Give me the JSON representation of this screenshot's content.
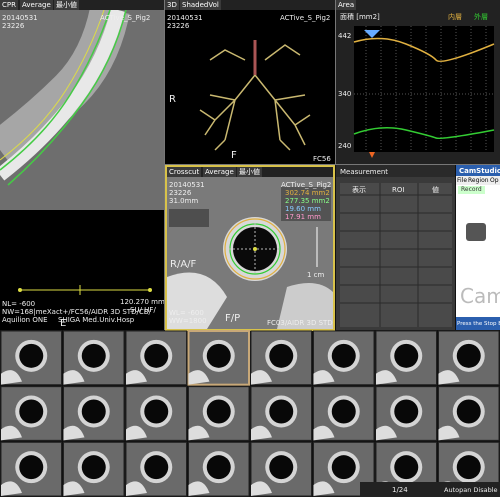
{
  "cpr": {
    "tabs": [
      "CPR",
      "Average",
      "最小値"
    ],
    "date": "20140531",
    "time": "23226",
    "patient": "ACTive_S_Pig2",
    "orient": "E",
    "scale": "120.270 mm",
    "info": [
      "NL= -600",
      "SU/ HF/",
      "NW=168|meXact+/FC56/AIDR 3D STD/CB/",
      "Aquilion ONE",
      "SHIGA Med.Univ.Hosp"
    ]
  },
  "volume": {
    "tabs": [
      "3D",
      "ShadedVol"
    ],
    "date": "20140531",
    "time": "23226",
    "patient": "ACTive_S_Pig2",
    "left": "R",
    "bottom": "F",
    "kernel": "FC56"
  },
  "area": {
    "tab": "Area",
    "unit": "面積 [mm2]",
    "legend": [
      "内層",
      "外層"
    ],
    "yticks": [
      "442",
      "340",
      "240"
    ]
  },
  "crosscut": {
    "tabs": [
      "Crosscut",
      "Average",
      "最小値"
    ],
    "date": "20140531",
    "time": "23226",
    "patient": "ACTive_S_Pig2",
    "thickness": "31.0mm",
    "measures": [
      "302.74 mm2",
      "277.35 mm2",
      "19.60 mm",
      "17.91 mm"
    ],
    "left": "R/A/F",
    "bottom": "F/P",
    "scalebar": "1 cm",
    "wl": "WL= -600",
    "ww": "WW=1800",
    "recon": "FC03/AIDR 3D STD"
  },
  "measurement": {
    "title": "Measurement",
    "headers": [
      "表示",
      "ROI",
      "値"
    ]
  },
  "camstudio": {
    "title": "CamStudio",
    "menu": [
      "File",
      "Region",
      "Op"
    ],
    "button": "Record",
    "logo": "Cam",
    "status": "Press the Stop Button"
  },
  "status": {
    "page": "1/24",
    "autopan": "Autopan Disable"
  }
}
